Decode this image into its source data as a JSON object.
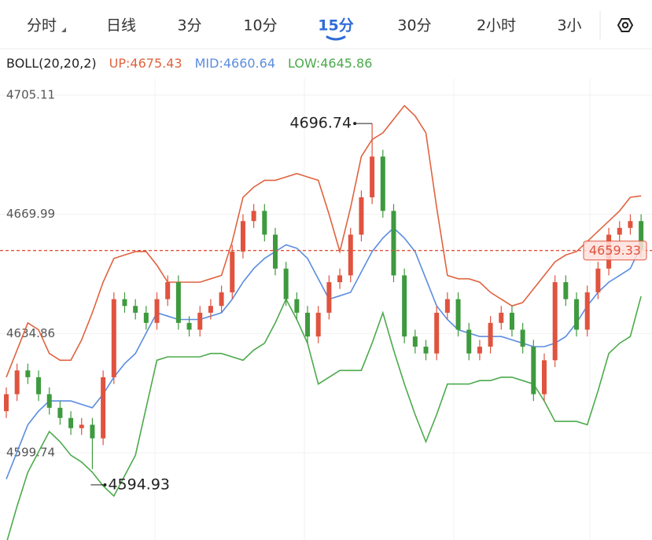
{
  "tabs": {
    "items": [
      "分时",
      "日线",
      "3分",
      "10分",
      "15分",
      "30分",
      "2小时",
      "3小"
    ],
    "active": 4
  },
  "chart_data": {
    "type": "candlestick",
    "indicator": "BOLL(20,20,2)",
    "up_color": "#e0533f",
    "down_color": "#3e9a3e",
    "open": [
      4612,
      4617,
      4624,
      4622,
      4617,
      4613,
      4610,
      4607,
      4608,
      4604,
      4622,
      4645,
      4643,
      4641,
      4638,
      4645,
      4650,
      4638,
      4636,
      4641,
      4643,
      4647,
      4659,
      4668,
      4671,
      4664,
      4654,
      4645,
      4641,
      4634,
      4641,
      4650,
      4652,
      4664,
      4675,
      4687,
      4671,
      4652,
      4634,
      4631,
      4629,
      4641,
      4645,
      4636,
      4629,
      4631,
      4638,
      4641,
      4636,
      4631,
      4617,
      4627,
      4650,
      4645,
      4636,
      4647,
      4654,
      4664,
      4666,
      4668
    ],
    "high": [
      4619,
      4626,
      4626,
      4624,
      4619,
      4615,
      4612,
      4610,
      4610,
      4624,
      4647,
      4647,
      4645,
      4643,
      4647,
      4652,
      4652,
      4640,
      4643,
      4645,
      4649,
      4661,
      4670,
      4673,
      4673,
      4666,
      4656,
      4647,
      4643,
      4643,
      4652,
      4654,
      4666,
      4677,
      4696.74,
      4689,
      4673,
      4654,
      4636,
      4633,
      4643,
      4647,
      4647,
      4638,
      4633,
      4640,
      4643,
      4643,
      4638,
      4633,
      4629,
      4652,
      4652,
      4647,
      4649,
      4656,
      4666,
      4668,
      4670,
      4670
    ],
    "low": [
      4610,
      4615,
      4620,
      4615,
      4611,
      4608,
      4605,
      4605,
      4594.93,
      4602,
      4620,
      4641,
      4639,
      4636,
      4636,
      4643,
      4636,
      4634,
      4634,
      4639,
      4641,
      4645,
      4657,
      4666,
      4662,
      4652,
      4643,
      4639,
      4632,
      4632,
      4639,
      4648,
      4650,
      4662,
      4673,
      4669,
      4650,
      4632,
      4629,
      4627,
      4627,
      4639,
      4634,
      4627,
      4627,
      4629,
      4636,
      4634,
      4629,
      4615,
      4615,
      4625,
      4643,
      4634,
      4634,
      4645,
      4652,
      4662,
      4664,
      4657.33
    ],
    "close": [
      4617,
      4624,
      4622,
      4617,
      4613,
      4610,
      4607,
      4608,
      4604,
      4622,
      4645,
      4643,
      4641,
      4638,
      4645,
      4650,
      4638,
      4636,
      4641,
      4643,
      4647,
      4659,
      4668,
      4671,
      4664,
      4654,
      4645,
      4641,
      4634,
      4641,
      4650,
      4652,
      4664,
      4675,
      4687,
      4671,
      4652,
      4634,
      4631,
      4629,
      4641,
      4645,
      4636,
      4629,
      4631,
      4638,
      4641,
      4636,
      4631,
      4617,
      4627,
      4650,
      4645,
      4636,
      4647,
      4654,
      4664,
      4666,
      4668,
      4659.33
    ],
    "series": [
      {
        "name": "UP:4675.43",
        "color": "#e0633f",
        "values": [
          4622,
          4630,
          4638,
          4636,
          4629,
          4627,
          4627,
          4633,
          4641,
          4650,
          4657,
          4658,
          4659,
          4659,
          4655,
          4650,
          4650,
          4650,
          4650,
          4651,
          4652,
          4662,
          4675,
          4678,
          4680,
          4680,
          4681,
          4682,
          4681,
          4680,
          4670,
          4659,
          4672,
          4687,
          4692,
          4694,
          4698,
          4702,
          4699,
          4694,
          4672,
          4652,
          4651,
          4651,
          4650,
          4647,
          4645,
          4643,
          4644,
          4648,
          4652,
          4656,
          4658,
          4659,
          4662,
          4665,
          4668,
          4671,
          4675,
          4675.43
        ]
      },
      {
        "name": "MID:4660.64",
        "color": "#5b8de0",
        "values": [
          4592,
          4600,
          4608,
          4612,
          4615,
          4615,
          4615,
          4614,
          4613,
          4617,
          4622,
          4626,
          4629,
          4635,
          4641,
          4640,
          4639,
          4639,
          4639,
          4640,
          4641,
          4645,
          4650,
          4654,
          4657,
          4659,
          4661,
          4660,
          4657,
          4651,
          4645,
          4646,
          4647,
          4653,
          4659,
          4663,
          4666,
          4663,
          4659,
          4651,
          4643,
          4639,
          4636,
          4635,
          4634,
          4634,
          4634,
          4633,
          4632,
          4631,
          4631,
          4632,
          4634,
          4638,
          4643,
          4647,
          4650,
          4652,
          4654,
          4660.64
        ]
      },
      {
        "name": "LOW:4645.86",
        "color": "#4caa4c",
        "values": [
          4573,
          4584,
          4594,
          4600,
          4606,
          4603,
          4599,
          4597,
          4594,
          4590,
          4587,
          4593,
          4599,
          4613,
          4627,
          4628,
          4628,
          4628,
          4628,
          4629,
          4629,
          4628,
          4627,
          4630,
          4632,
          4638,
          4645,
          4639,
          4632,
          4620,
          4622,
          4624,
          4624,
          4624,
          4632,
          4641,
          4630,
          4620,
          4611,
          4603,
          4611,
          4620,
          4620,
          4620,
          4621,
          4621,
          4622,
          4622,
          4621,
          4620,
          4615,
          4609,
          4609,
          4609,
          4608,
          4618,
          4629,
          4632,
          4634,
          4645.86
        ]
      }
    ],
    "ylim": [
      4574.05,
      4709.97
    ],
    "yticks": [
      4705.11,
      4669.99,
      4634.86,
      4599.74
    ],
    "grid": true,
    "last_price": 4659.33,
    "max_label": 4696.74,
    "min_label": 4594.93
  }
}
